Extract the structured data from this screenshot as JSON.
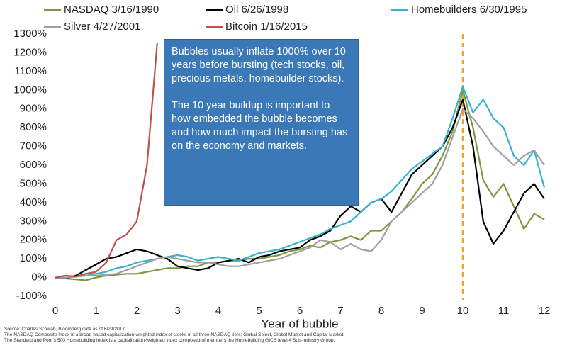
{
  "chart_data": {
    "type": "line",
    "x_label": "Year of bubble",
    "x": [
      0,
      0.25,
      0.5,
      0.75,
      1,
      1.25,
      1.5,
      1.75,
      2,
      2.25,
      2.5,
      2.75,
      3,
      3.25,
      3.5,
      3.75,
      4,
      4.25,
      4.5,
      4.75,
      5,
      5.25,
      5.5,
      5.75,
      6,
      6.25,
      6.5,
      6.75,
      7,
      7.25,
      7.5,
      7.75,
      8,
      8.25,
      8.5,
      8.75,
      9,
      9.25,
      9.5,
      9.75,
      10,
      10.25,
      10.5,
      10.75,
      11,
      11.25,
      11.5,
      11.75,
      12
    ],
    "series": [
      {
        "name": "NASDAQ 3/16/1990",
        "color": "#7a9a3a",
        "values": [
          0,
          -5,
          -10,
          -15,
          0,
          10,
          15,
          20,
          20,
          30,
          40,
          50,
          50,
          60,
          60,
          80,
          80,
          90,
          90,
          100,
          100,
          110,
          120,
          140,
          150,
          170,
          160,
          190,
          200,
          220,
          200,
          250,
          250,
          300,
          350,
          420,
          500,
          550,
          650,
          780,
          1000,
          800,
          520,
          430,
          500,
          380,
          260,
          340,
          310
        ]
      },
      {
        "name": "Oil 6/26/1998",
        "color": "#000000",
        "values": [
          0,
          -5,
          10,
          40,
          70,
          100,
          110,
          130,
          150,
          140,
          120,
          100,
          60,
          50,
          40,
          50,
          80,
          90,
          100,
          80,
          110,
          120,
          140,
          150,
          160,
          200,
          220,
          250,
          330,
          380,
          350,
          400,
          420,
          350,
          450,
          550,
          600,
          650,
          700,
          800,
          950,
          700,
          300,
          180,
          250,
          350,
          450,
          500,
          420
        ]
      },
      {
        "name": "Homebuilders 6/30/1995",
        "color": "#35b3d1",
        "values": [
          0,
          0,
          5,
          10,
          20,
          30,
          50,
          60,
          80,
          90,
          100,
          110,
          120,
          110,
          90,
          100,
          110,
          100,
          90,
          110,
          130,
          140,
          150,
          170,
          190,
          210,
          230,
          260,
          280,
          300,
          350,
          400,
          420,
          460,
          520,
          580,
          620,
          660,
          700,
          850,
          1020,
          880,
          950,
          850,
          800,
          650,
          600,
          680,
          480
        ]
      },
      {
        "name": "Silver 4/27/2001",
        "color": "#a0a0a0",
        "values": [
          0,
          0,
          5,
          10,
          10,
          15,
          20,
          40,
          60,
          80,
          100,
          110,
          100,
          90,
          80,
          80,
          70,
          60,
          60,
          70,
          80,
          90,
          100,
          120,
          140,
          160,
          200,
          190,
          150,
          180,
          150,
          140,
          200,
          300,
          350,
          400,
          450,
          500,
          600,
          750,
          900,
          850,
          780,
          700,
          650,
          600,
          650,
          680,
          600
        ]
      },
      {
        "name": "Bitcoin 1/16/2015",
        "color": "#c0504d",
        "values": [
          0,
          10,
          5,
          20,
          30,
          80,
          200,
          230,
          300,
          600,
          1250,
          null,
          null,
          null,
          null,
          null,
          null,
          null,
          null,
          null,
          null,
          null,
          null,
          null,
          null,
          null,
          null,
          null,
          null,
          null,
          null,
          null,
          null,
          null,
          null,
          null,
          null,
          null,
          null,
          null,
          null,
          null,
          null,
          null,
          null,
          null,
          null,
          null,
          null
        ]
      }
    ],
    "xlim": [
      0,
      12
    ],
    "xticks": [
      0,
      1,
      2,
      3,
      4,
      5,
      6,
      7,
      8,
      9,
      10,
      11,
      12
    ],
    "ylim": [
      -100,
      1300
    ],
    "yticks": [
      {
        "value": -100,
        "label": "-100%"
      },
      {
        "value": 0,
        "label": "0%"
      },
      {
        "value": 100,
        "label": "100%"
      },
      {
        "value": 200,
        "label": "200%"
      },
      {
        "value": 300,
        "label": "300%"
      },
      {
        "value": 400,
        "label": "400%"
      },
      {
        "value": 500,
        "label": "500%"
      },
      {
        "value": 600,
        "label": "600%"
      },
      {
        "value": 700,
        "label": "700%"
      },
      {
        "value": 800,
        "label": "800%"
      },
      {
        "value": 900,
        "label": "900%"
      },
      {
        "value": 1000,
        "label": "1000%"
      },
      {
        "value": 1100,
        "label": "1100%"
      },
      {
        "value": 1200,
        "label": "1200%"
      },
      {
        "value": 1300,
        "label": "1300%"
      }
    ],
    "grid": false,
    "reference_line_x": 10,
    "reference_line_color": "#f0a030",
    "annotation": [
      "Bubbles usually inflate 1000% over 10 years before bursting (tech stocks, oil, precious metals, homebuilder stocks).",
      "The 10 year buildup is important to how embedded the bubble becomes and how much impact the bursting has on the economy and markets."
    ],
    "source": [
      "Source: Charles Schwab, Bloomberg data as of 6/29/2017.",
      "The NASDAQ Composite Index is a broad-based capitalization-weighted index of stocks in all three NASDAQ tiers: Global Select, Global Market and Capital Market.",
      "The Standard and Poor's 500 Homebuilding Index is a capitalization-weighted index composed of members the Homebuilding GICS level 4 Sub-Industry Group."
    ]
  }
}
